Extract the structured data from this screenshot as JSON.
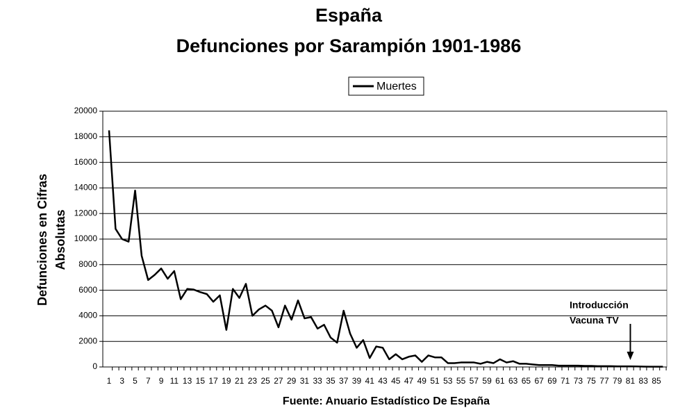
{
  "chart_data": {
    "type": "line",
    "title": [
      "España",
      "Defunciones por Sarampión 1901-1986"
    ],
    "y_label": [
      "Defunciones en Cifras",
      "Absolutas"
    ],
    "x_label": "Fuente: Anuario Estadístico De España",
    "annotation": {
      "lines": [
        "Introducción",
        "Vacuna TV"
      ],
      "category_index": 80
    },
    "categories": [
      "1",
      null,
      "3",
      null,
      "5",
      null,
      "7",
      null,
      "9",
      null,
      "11",
      null,
      "13",
      null,
      "15",
      null,
      "17",
      null,
      "19",
      null,
      "21",
      null,
      "23",
      null,
      "25",
      null,
      "27",
      null,
      "29",
      null,
      "31",
      null,
      "33",
      null,
      "35",
      null,
      "37",
      null,
      "39",
      null,
      "41",
      null,
      "43",
      null,
      "45",
      null,
      "47",
      null,
      "49",
      null,
      "51",
      null,
      "53",
      null,
      "55",
      null,
      "57",
      null,
      "59",
      null,
      "61",
      null,
      "63",
      null,
      "65",
      null,
      "67",
      null,
      "69",
      null,
      "71",
      null,
      "73",
      null,
      "75",
      null,
      "77",
      null,
      "79",
      null,
      "81",
      null,
      "83",
      null,
      "85",
      null
    ],
    "series": [
      {
        "name": "Muertes",
        "color": "#000000",
        "values": [
          18500,
          10800,
          10000,
          9800,
          13800,
          8700,
          6800,
          7200,
          7700,
          6900,
          7500,
          5300,
          6100,
          6050,
          5850,
          5700,
          5100,
          5600,
          2900,
          6100,
          5400,
          6500,
          4000,
          4500,
          4800,
          4400,
          3100,
          4800,
          3700,
          5200,
          3800,
          3900,
          3000,
          3300,
          2300,
          1900,
          4400,
          2600,
          1500,
          2100,
          700,
          1600,
          1500,
          600,
          1000,
          600,
          800,
          900,
          400,
          900,
          750,
          750,
          300,
          300,
          350,
          350,
          350,
          250,
          400,
          300,
          600,
          350,
          450,
          250,
          250,
          200,
          150,
          150,
          150,
          100,
          100,
          100,
          100,
          80,
          80,
          60,
          60,
          60,
          50,
          50,
          50,
          40,
          30,
          20,
          20,
          20
        ]
      }
    ],
    "ylim": [
      0,
      20000
    ],
    "yticks": [
      0,
      2000,
      4000,
      6000,
      8000,
      10000,
      12000,
      14000,
      16000,
      18000,
      20000
    ],
    "grid": true,
    "legend": "top"
  }
}
